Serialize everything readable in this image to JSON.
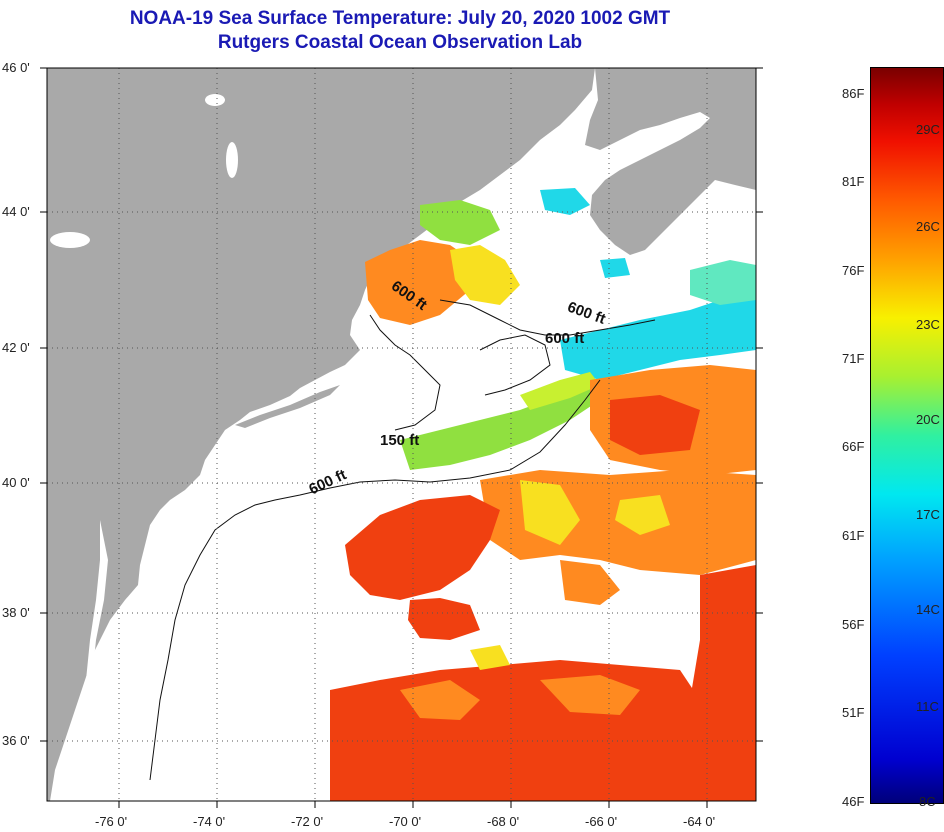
{
  "header": {
    "title": "NOAA-19 Sea Surface Temperature:  July 20, 2020 1002 GMT",
    "subtitle": "Rutgers Coastal Ocean Observation Lab"
  },
  "axes": {
    "lat_labels": [
      "46 0'",
      "44 0'",
      "42 0'",
      "40 0'",
      "38 0'",
      "36 0'"
    ],
    "lon_labels": [
      "-76 0'",
      "-74 0'",
      "-72 0'",
      "-70 0'",
      "-68 0'",
      "-66 0'",
      "-64 0'"
    ]
  },
  "contours": [
    {
      "label": "600 ft"
    },
    {
      "label": "600 ft"
    },
    {
      "label": "600 ft"
    },
    {
      "label": "150 ft"
    },
    {
      "label": "600 ft"
    }
  ],
  "colorbar": {
    "fahrenheit": [
      "86F",
      "81F",
      "76F",
      "71F",
      "66F",
      "61F",
      "56F",
      "51F",
      "46F"
    ],
    "celsius": [
      "29C",
      "26C",
      "23C",
      "20C",
      "17C",
      "14C",
      "11C",
      "8C"
    ]
  },
  "colors": {
    "land": "#a9a9a9",
    "title": "#1a1ab4",
    "warm": "#f04010",
    "orange": "#ff8a20",
    "yellow": "#f8e020",
    "green": "#90e040",
    "cyan": "#20d8e8"
  }
}
